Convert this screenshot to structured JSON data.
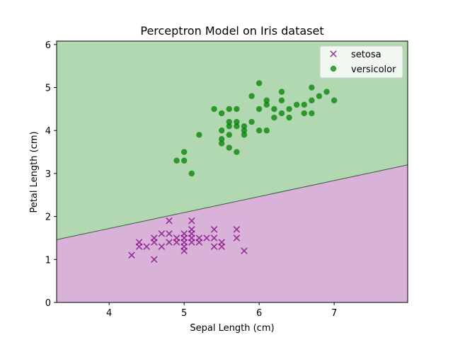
{
  "chart_data": {
    "type": "scatter",
    "title": "Perceptron Model on Iris dataset",
    "xlabel": "Sepal Length (cm)",
    "ylabel": "Petal Length (cm)",
    "xlim": [
      3.3,
      7.98
    ],
    "ylim": [
      0,
      6.08
    ],
    "xticks": [
      4,
      5,
      6,
      7
    ],
    "yticks": [
      0,
      1,
      2,
      3,
      4,
      5,
      6
    ],
    "grid": false,
    "legend_position": "top-right",
    "decision_boundary": {
      "left": [
        3.3,
        1.46
      ],
      "right": [
        7.98,
        3.2
      ]
    },
    "regions": [
      {
        "label": "versicolor",
        "color": "#b2d8b2"
      },
      {
        "label": "setosa",
        "color": "#d8b2d8"
      }
    ],
    "series": [
      {
        "name": "setosa",
        "marker": "x",
        "color": "#800080",
        "points": [
          [
            4.3,
            1.1
          ],
          [
            4.4,
            1.3
          ],
          [
            4.4,
            1.4
          ],
          [
            4.5,
            1.3
          ],
          [
            4.6,
            1.0
          ],
          [
            4.6,
            1.4
          ],
          [
            4.6,
            1.5
          ],
          [
            4.7,
            1.3
          ],
          [
            4.7,
            1.6
          ],
          [
            4.8,
            1.4
          ],
          [
            4.8,
            1.6
          ],
          [
            4.8,
            1.9
          ],
          [
            4.9,
            1.4
          ],
          [
            4.9,
            1.5
          ],
          [
            5.0,
            1.2
          ],
          [
            5.0,
            1.3
          ],
          [
            5.0,
            1.4
          ],
          [
            5.0,
            1.5
          ],
          [
            5.0,
            1.6
          ],
          [
            5.1,
            1.4
          ],
          [
            5.1,
            1.5
          ],
          [
            5.1,
            1.6
          ],
          [
            5.1,
            1.7
          ],
          [
            5.1,
            1.9
          ],
          [
            5.2,
            1.4
          ],
          [
            5.2,
            1.5
          ],
          [
            5.3,
            1.5
          ],
          [
            5.4,
            1.3
          ],
          [
            5.4,
            1.5
          ],
          [
            5.4,
            1.7
          ],
          [
            5.5,
            1.3
          ],
          [
            5.5,
            1.4
          ],
          [
            5.7,
            1.5
          ],
          [
            5.7,
            1.7
          ],
          [
            5.8,
            1.2
          ]
        ]
      },
      {
        "name": "versicolor",
        "marker": "o",
        "color": "#008000",
        "points": [
          [
            4.9,
            3.3
          ],
          [
            5.0,
            3.3
          ],
          [
            5.0,
            3.5
          ],
          [
            5.1,
            3.0
          ],
          [
            5.2,
            3.9
          ],
          [
            5.4,
            4.5
          ],
          [
            5.5,
            3.7
          ],
          [
            5.5,
            3.8
          ],
          [
            5.5,
            4.0
          ],
          [
            5.5,
            4.4
          ],
          [
            5.6,
            3.6
          ],
          [
            5.6,
            3.9
          ],
          [
            5.6,
            4.1
          ],
          [
            5.6,
            4.2
          ],
          [
            5.6,
            4.5
          ],
          [
            5.7,
            3.5
          ],
          [
            5.7,
            4.1
          ],
          [
            5.7,
            4.2
          ],
          [
            5.7,
            4.5
          ],
          [
            5.8,
            3.9
          ],
          [
            5.8,
            4.0
          ],
          [
            5.8,
            4.1
          ],
          [
            5.9,
            4.2
          ],
          [
            5.9,
            4.8
          ],
          [
            6.0,
            4.0
          ],
          [
            6.0,
            4.5
          ],
          [
            6.0,
            5.1
          ],
          [
            6.1,
            4.0
          ],
          [
            6.1,
            4.6
          ],
          [
            6.1,
            4.7
          ],
          [
            6.2,
            4.3
          ],
          [
            6.2,
            4.5
          ],
          [
            6.3,
            4.4
          ],
          [
            6.3,
            4.7
          ],
          [
            6.3,
            4.9
          ],
          [
            6.4,
            4.3
          ],
          [
            6.4,
            4.5
          ],
          [
            6.5,
            4.6
          ],
          [
            6.6,
            4.4
          ],
          [
            6.6,
            4.6
          ],
          [
            6.7,
            4.4
          ],
          [
            6.7,
            4.7
          ],
          [
            6.7,
            5.0
          ],
          [
            6.8,
            4.8
          ],
          [
            6.9,
            4.9
          ],
          [
            7.0,
            4.7
          ]
        ]
      }
    ]
  }
}
